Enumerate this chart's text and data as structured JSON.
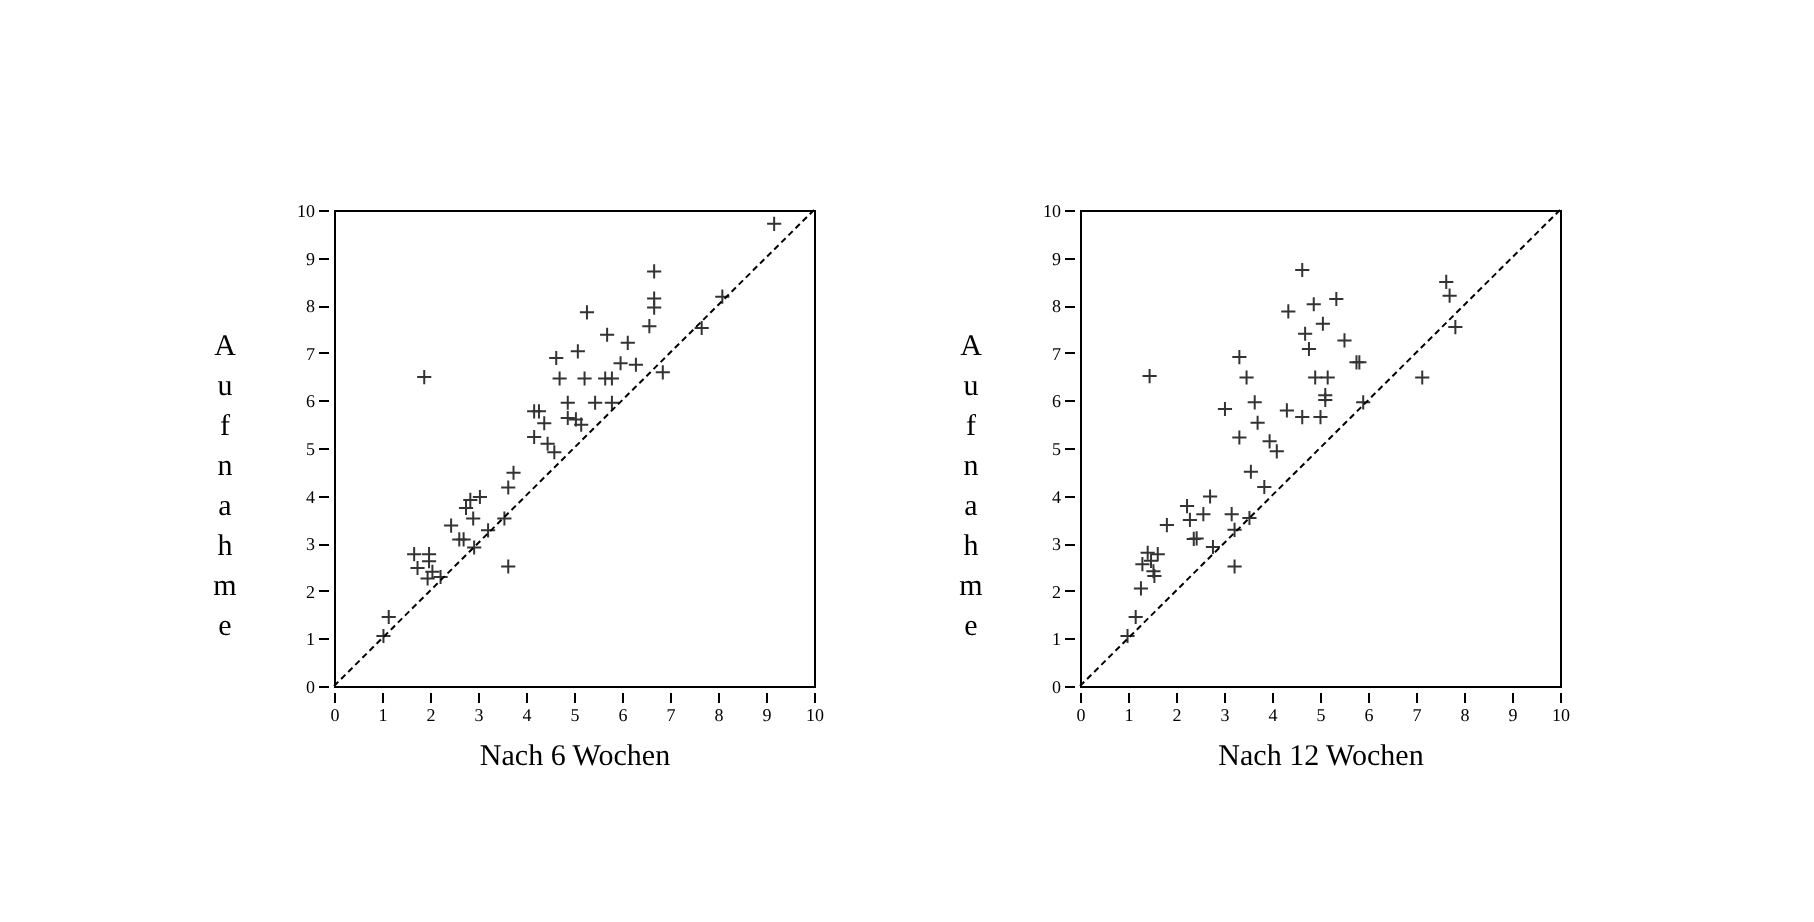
{
  "chart_data": [
    {
      "type": "scatter",
      "xlabel": "Nach 6 Wochen",
      "ylabel": "Aufnahme",
      "xlim": [
        0,
        10
      ],
      "ylim": [
        0,
        10
      ],
      "xticks": [
        0,
        1,
        2,
        3,
        4,
        5,
        6,
        7,
        8,
        9,
        10
      ],
      "yticks": [
        0,
        1,
        2,
        3,
        4,
        5,
        6,
        7,
        8,
        9,
        10
      ],
      "grid": false,
      "series": [
        {
          "type": "scatter",
          "marker": "cross",
          "color": "#333333",
          "x": [
            1.03,
            1.14,
            1.88,
            1.67,
            1.74,
            1.98,
            1.98,
            1.95,
            2.05,
            2.22,
            2.44,
            2.61,
            2.7,
            2.75,
            2.84,
            2.9,
            2.92,
            3.04,
            3.21,
            3.55,
            3.63,
            3.63,
            3.74,
            4.17,
            4.27,
            4.17,
            4.38,
            4.45,
            4.59,
            4.63,
            4.7,
            4.87,
            4.87,
            5.08,
            5.04,
            5.15,
            5.22,
            5.27,
            5.44,
            5.65,
            5.69,
            5.79,
            5.79,
            5.97,
            6.12,
            6.29,
            6.57,
            6.67,
            6.67,
            6.67,
            6.85,
            7.66,
            8.09,
            9.17
          ],
          "values": [
            1.05,
            1.45,
            6.49,
            2.77,
            2.48,
            2.77,
            2.62,
            2.26,
            2.4,
            2.29,
            3.37,
            3.08,
            3.08,
            3.74,
            3.91,
            3.52,
            2.91,
            3.97,
            3.27,
            3.52,
            2.51,
            4.17,
            4.48,
            5.77,
            5.77,
            5.23,
            5.52,
            5.09,
            4.91,
            6.89,
            6.46,
            5.95,
            5.63,
            7.03,
            5.6,
            5.49,
            6.46,
            7.85,
            5.95,
            6.46,
            7.38,
            6.46,
            5.95,
            6.78,
            7.21,
            6.75,
            7.56,
            8.71,
            8.14,
            7.95,
            6.59,
            7.52,
            8.18,
            9.71
          ]
        },
        {
          "type": "line",
          "color": "#000000",
          "line_style": "dashed",
          "x": [
            0,
            10
          ],
          "values": [
            0,
            10
          ]
        }
      ]
    },
    {
      "type": "scatter",
      "xlabel": "Nach 12 Wochen",
      "ylabel": "Aufnahme",
      "xlim": [
        0,
        10
      ],
      "ylim": [
        0,
        10
      ],
      "xticks": [
        0,
        1,
        2,
        3,
        4,
        5,
        6,
        7,
        8,
        9,
        10
      ],
      "yticks": [
        0,
        1,
        2,
        3,
        4,
        5,
        6,
        7,
        8,
        9,
        10
      ],
      "grid": false,
      "series": [
        {
          "type": "scatter",
          "marker": "cross",
          "color": "#333333",
          "x": [
            0.99,
            1.16,
            1.45,
            1.27,
            1.3,
            1.41,
            1.48,
            1.53,
            1.55,
            1.62,
            1.81,
            2.23,
            2.29,
            2.37,
            2.43,
            2.57,
            2.71,
            2.77,
            3.02,
            3.16,
            3.22,
            3.22,
            3.32,
            3.32,
            3.47,
            3.53,
            3.56,
            3.64,
            3.7,
            3.84,
            3.95,
            4.1,
            4.31,
            4.34,
            4.63,
            4.63,
            4.69,
            4.77,
            4.87,
            4.9,
            5.01,
            5.06,
            5.11,
            5.11,
            5.16,
            5.34,
            5.51,
            5.76,
            5.82,
            5.9,
            7.13,
            7.63,
            7.7,
            7.82
          ],
          "values": [
            1.05,
            1.45,
            6.51,
            2.05,
            2.56,
            2.8,
            2.63,
            2.41,
            2.31,
            2.77,
            3.38,
            3.78,
            3.49,
            3.09,
            3.1,
            3.61,
            3.98,
            2.92,
            5.82,
            3.61,
            3.28,
            2.51,
            6.91,
            5.22,
            6.48,
            3.53,
            4.5,
            5.96,
            5.53,
            4.18,
            5.14,
            4.93,
            5.79,
            7.87,
            5.65,
            8.74,
            7.4,
            7.08,
            8.02,
            6.48,
            5.65,
            7.61,
            6.01,
            6.11,
            6.48,
            8.13,
            7.26,
            6.8,
            6.8,
            5.96,
            6.48,
            8.49,
            8.2,
            7.54
          ]
        },
        {
          "type": "line",
          "color": "#000000",
          "line_style": "dashed",
          "x": [
            0,
            10
          ],
          "values": [
            0,
            10
          ]
        }
      ]
    }
  ]
}
